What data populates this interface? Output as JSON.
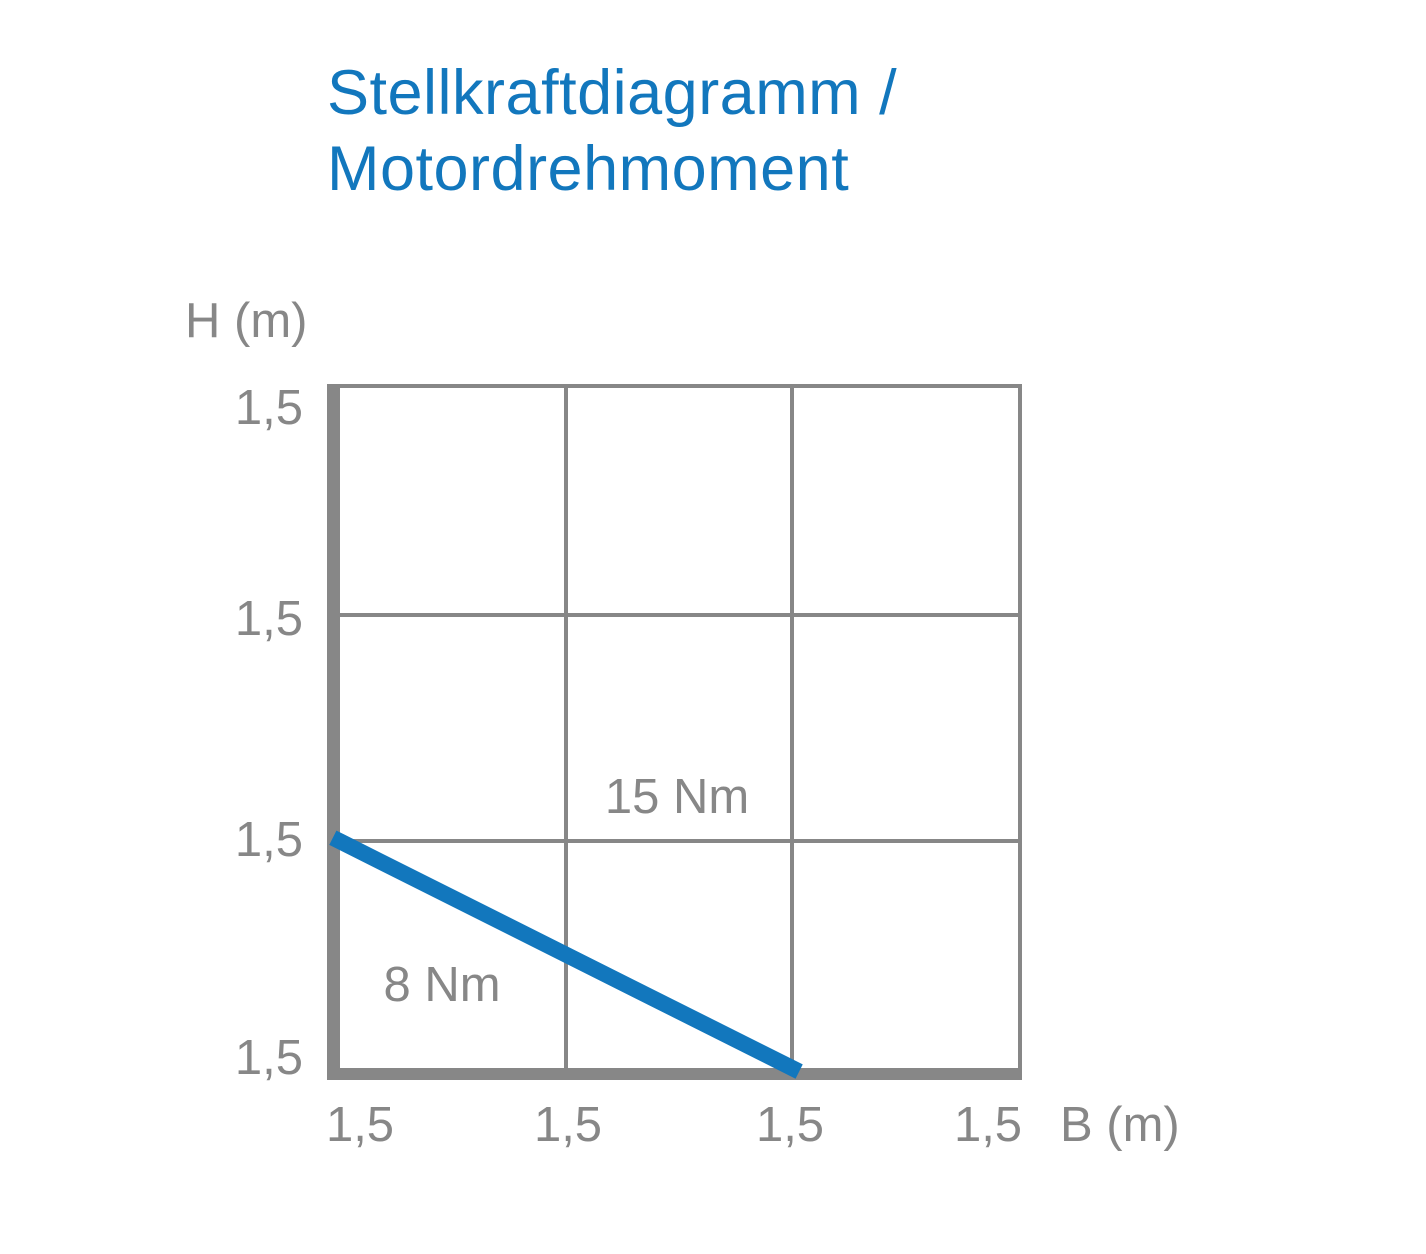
{
  "colors": {
    "accent_blue": "#1277bd",
    "axis_gray": "#878787",
    "background": "#ffffff"
  },
  "chart_data": {
    "type": "line",
    "title": "Stellkraftdiagramm / Motordrehmoment",
    "title_lines": [
      "Stellkraftdiagramm /",
      "Motordrehmoment"
    ],
    "xlabel": "B (m)",
    "ylabel": "H (m)",
    "x_ticks": [
      "1,5",
      "1,5",
      "1,5",
      "1,5"
    ],
    "y_ticks": [
      "1,5",
      "1,5",
      "1,5",
      "1,5"
    ],
    "grid": true,
    "grid_cols": 3,
    "grid_rows": 3,
    "axis_color": "#878787",
    "legend": "none",
    "series": [
      {
        "name": "torque-boundary",
        "color": "#1277bd",
        "points": [
          [
            0,
            1
          ],
          [
            2,
            0
          ]
        ]
      }
    ],
    "annotations": [
      {
        "text": "15 Nm",
        "region": "above-line"
      },
      {
        "text": "8 Nm",
        "region": "below-line"
      }
    ]
  }
}
